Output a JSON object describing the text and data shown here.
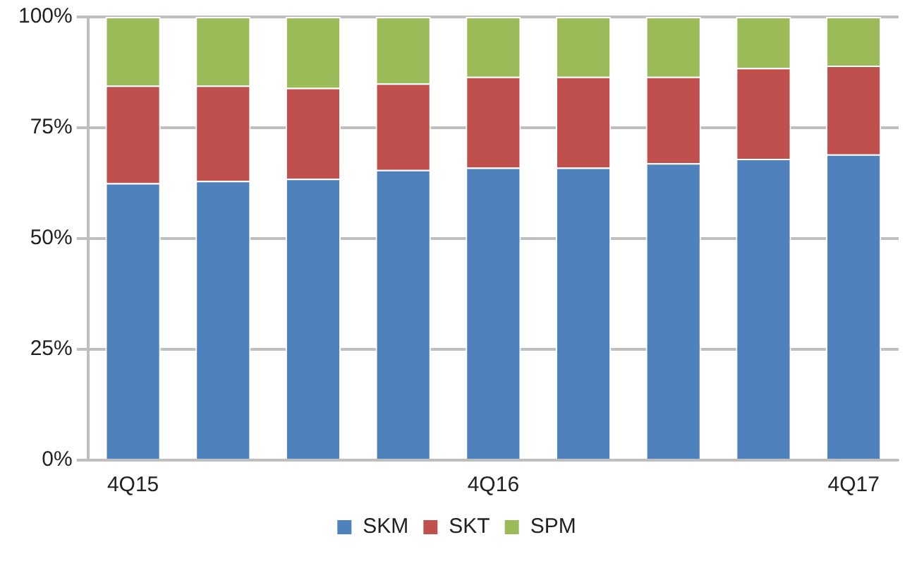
{
  "chart_data": {
    "type": "bar",
    "stacked": true,
    "categories": [
      "4Q15",
      null,
      null,
      null,
      "4Q16",
      null,
      null,
      null,
      "4Q17"
    ],
    "series": [
      {
        "name": "SKM",
        "color": "#4f81bd",
        "values": [
          62.5,
          63,
          63.5,
          65.5,
          66,
          66,
          67,
          68,
          69
        ]
      },
      {
        "name": "SKT",
        "color": "#c0504d",
        "values": [
          22,
          21.5,
          20.5,
          19.5,
          20.5,
          20.5,
          19.5,
          20.5,
          20
        ]
      },
      {
        "name": "SPM",
        "color": "#9bbb59",
        "values": [
          15.5,
          15.5,
          16,
          15,
          13.5,
          13.5,
          13.5,
          11.5,
          11
        ]
      }
    ],
    "ylim": [
      0,
      100
    ],
    "yticks": [
      {
        "value": 0,
        "label": "0%"
      },
      {
        "value": 25,
        "label": "25%"
      },
      {
        "value": 50,
        "label": "50%"
      },
      {
        "value": 75,
        "label": "75%"
      },
      {
        "value": 100,
        "label": "100%"
      }
    ],
    "grid": "y",
    "legend": "bottom"
  }
}
